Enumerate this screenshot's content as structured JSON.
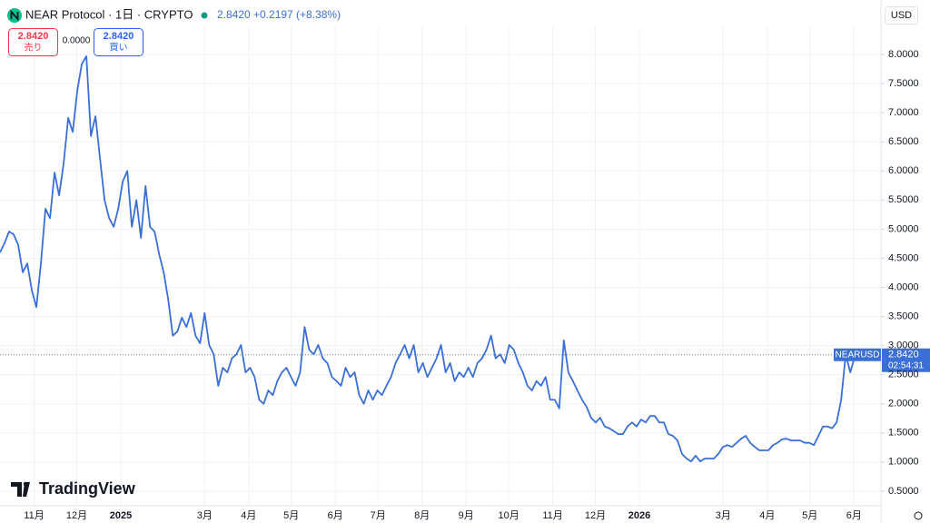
{
  "chart_data": {
    "type": "line",
    "title": "NEAR Protocol · 1日 · CRYPTO",
    "change": "+0.2197 (+8.38%)",
    "last_price": {
      "value": 2.842,
      "label": "2.8420"
    },
    "sell_label": "売り",
    "buy_label": "買い",
    "spread": "0.0000",
    "currency": "USD",
    "countdown": "02:54:31",
    "brand": "TradingView",
    "grid": true,
    "xlim": [
      0,
      620
    ],
    "ylim": [
      0.28,
      8.5
    ],
    "xticks": [
      {
        "value": 24,
        "label": "11月"
      },
      {
        "value": 54,
        "label": "12月"
      },
      {
        "value": 85,
        "label": "2025"
      },
      {
        "value": 144,
        "label": "3月"
      },
      {
        "value": 175,
        "label": "4月"
      },
      {
        "value": 205,
        "label": "5月"
      },
      {
        "value": 236,
        "label": "6月"
      },
      {
        "value": 266,
        "label": "7月"
      },
      {
        "value": 297,
        "label": "8月"
      },
      {
        "value": 328,
        "label": "9月"
      },
      {
        "value": 358,
        "label": "10月"
      },
      {
        "value": 389,
        "label": "11月"
      },
      {
        "value": 419,
        "label": "12月"
      },
      {
        "value": 450,
        "label": "2026"
      },
      {
        "value": 509,
        "label": "3月"
      },
      {
        "value": 540,
        "label": "4月"
      },
      {
        "value": 570,
        "label": "5月"
      },
      {
        "value": 601,
        "label": "6月"
      }
    ],
    "yticks": [
      {
        "value": 0.5,
        "label": "0.5000"
      },
      {
        "value": 1,
        "label": "1.0000"
      },
      {
        "value": 1.5,
        "label": "1.5000"
      },
      {
        "value": 2,
        "label": "2.0000"
      },
      {
        "value": 2.5,
        "label": "2.5000"
      },
      {
        "value": 3,
        "label": "3.0000"
      },
      {
        "value": 3.5,
        "label": "3.5000"
      },
      {
        "value": 4,
        "label": "4.0000"
      },
      {
        "value": 4.5,
        "label": "4.5000"
      },
      {
        "value": 5,
        "label": "5.0000"
      },
      {
        "value": 5.5,
        "label": "5.5000"
      },
      {
        "value": 6,
        "label": "6.0000"
      },
      {
        "value": 6.5,
        "label": "6.5000"
      },
      {
        "value": 7,
        "label": "7.0000"
      },
      {
        "value": 7.5,
        "label": "7.5000"
      },
      {
        "value": 8,
        "label": "8.0000"
      }
    ],
    "x": [
      0,
      3.2,
      6.4,
      9.6,
      12.8,
      16,
      19.2,
      22.4,
      25.6,
      28.8,
      32,
      35.2,
      38.4,
      41.6,
      44.8,
      48,
      51.2,
      54.4,
      57.6,
      60.8,
      64,
      67.2,
      70.4,
      73.6,
      76.8,
      80,
      83.2,
      86.4,
      89.6,
      92.8,
      96,
      99.2,
      102.4,
      105.6,
      108.8,
      112,
      115.2,
      118.4,
      121.6,
      124.8,
      128,
      131.2,
      134.4,
      137.6,
      140.8,
      144,
      147.2,
      150.4,
      153.6,
      156.8,
      160,
      163.2,
      166.4,
      169.6,
      172.8,
      176,
      179.2,
      182.4,
      185.6,
      188.8,
      192,
      195.2,
      198.4,
      201.6,
      204.8,
      208,
      211.2,
      214.4,
      217.6,
      220.8,
      224,
      227.2,
      230.4,
      233.6,
      236.8,
      240,
      243.2,
      246.4,
      249.6,
      252.8,
      256,
      259.2,
      262.4,
      265.6,
      268.8,
      272,
      275.2,
      278.4,
      281.6,
      284.8,
      288,
      291.2,
      294.4,
      297.6,
      300.8,
      304,
      307.2,
      310.4,
      313.6,
      316.8,
      320,
      323.2,
      326.4,
      329.6,
      332.8,
      336,
      339.2,
      342.4,
      345.6,
      348.8,
      352,
      355.2,
      358.4,
      361.6,
      364.8,
      368,
      371.2,
      374.4,
      377.6,
      380.8,
      384,
      387.2,
      390.4,
      393.6,
      396.8,
      400,
      403.2,
      406.4,
      409.6,
      412.8,
      416,
      419.2,
      422.4,
      425.6,
      428.8,
      432,
      435.2,
      438.4,
      441.6,
      444.8,
      448,
      451.2,
      454.4,
      457.6,
      460.8,
      464,
      467.2,
      470.4,
      473.6,
      476.8,
      480,
      483.2,
      486.4,
      489.6,
      492.8,
      496,
      499.2,
      502.4,
      505.6,
      508.8,
      512,
      515.2,
      518.4,
      521.6,
      524.8,
      528,
      531.2,
      534.4,
      537.6,
      540.8,
      544,
      547.2,
      550.4,
      553.6,
      556.8,
      560,
      563.2,
      566.4,
      569.6,
      572.8,
      576,
      579.2,
      582.4,
      585.6,
      588.8,
      592,
      595.2,
      598.4,
      601.6,
      604.8
    ],
    "series": [
      {
        "name": "NEARUSD",
        "color": "#3a6fd8",
        "values": [
          4.6,
          4.76,
          4.96,
          4.91,
          4.73,
          4.26,
          4.41,
          3.95,
          3.66,
          4.41,
          5.35,
          5.19,
          5.97,
          5.58,
          6.13,
          6.91,
          6.67,
          7.38,
          7.84,
          7.97,
          6.6,
          6.94,
          6.21,
          5.5,
          5.19,
          5.04,
          5.35,
          5.82,
          6.0,
          5.04,
          5.5,
          4.85,
          5.74,
          5.04,
          4.96,
          4.57,
          4.26,
          3.79,
          3.17,
          3.24,
          3.48,
          3.32,
          3.56,
          3.17,
          3.04,
          3.56,
          3.01,
          2.85,
          2.31,
          2.62,
          2.54,
          2.78,
          2.85,
          3.01,
          2.54,
          2.62,
          2.46,
          2.07,
          2.0,
          2.23,
          2.15,
          2.39,
          2.54,
          2.62,
          2.46,
          2.31,
          2.54,
          3.32,
          2.93,
          2.85,
          3.01,
          2.78,
          2.7,
          2.46,
          2.39,
          2.31,
          2.62,
          2.46,
          2.54,
          2.15,
          2.0,
          2.23,
          2.07,
          2.23,
          2.15,
          2.31,
          2.46,
          2.7,
          2.85,
          3.01,
          2.78,
          3.01,
          2.54,
          2.7,
          2.46,
          2.62,
          2.78,
          3.01,
          2.54,
          2.7,
          2.39,
          2.54,
          2.46,
          2.62,
          2.46,
          2.7,
          2.78,
          2.93,
          3.17,
          2.78,
          2.85,
          2.7,
          3.01,
          2.93,
          2.7,
          2.54,
          2.31,
          2.23,
          2.39,
          2.31,
          2.46,
          2.07,
          2.07,
          1.92,
          3.09,
          2.54,
          2.39,
          2.23,
          2.07,
          1.95,
          1.76,
          1.68,
          1.76,
          1.61,
          1.58,
          1.53,
          1.48,
          1.48,
          1.61,
          1.68,
          1.61,
          1.73,
          1.68,
          1.79,
          1.79,
          1.68,
          1.68,
          1.48,
          1.45,
          1.37,
          1.14,
          1.06,
          1.01,
          1.11,
          1.01,
          1.06,
          1.06,
          1.06,
          1.14,
          1.26,
          1.29,
          1.26,
          1.33,
          1.4,
          1.45,
          1.33,
          1.26,
          1.2,
          1.2,
          1.2,
          1.29,
          1.33,
          1.39,
          1.4,
          1.37,
          1.37,
          1.37,
          1.33,
          1.33,
          1.29,
          1.45,
          1.61,
          1.61,
          1.58,
          1.68,
          2.07,
          2.85,
          2.54,
          2.81,
          2.842
        ]
      }
    ]
  }
}
